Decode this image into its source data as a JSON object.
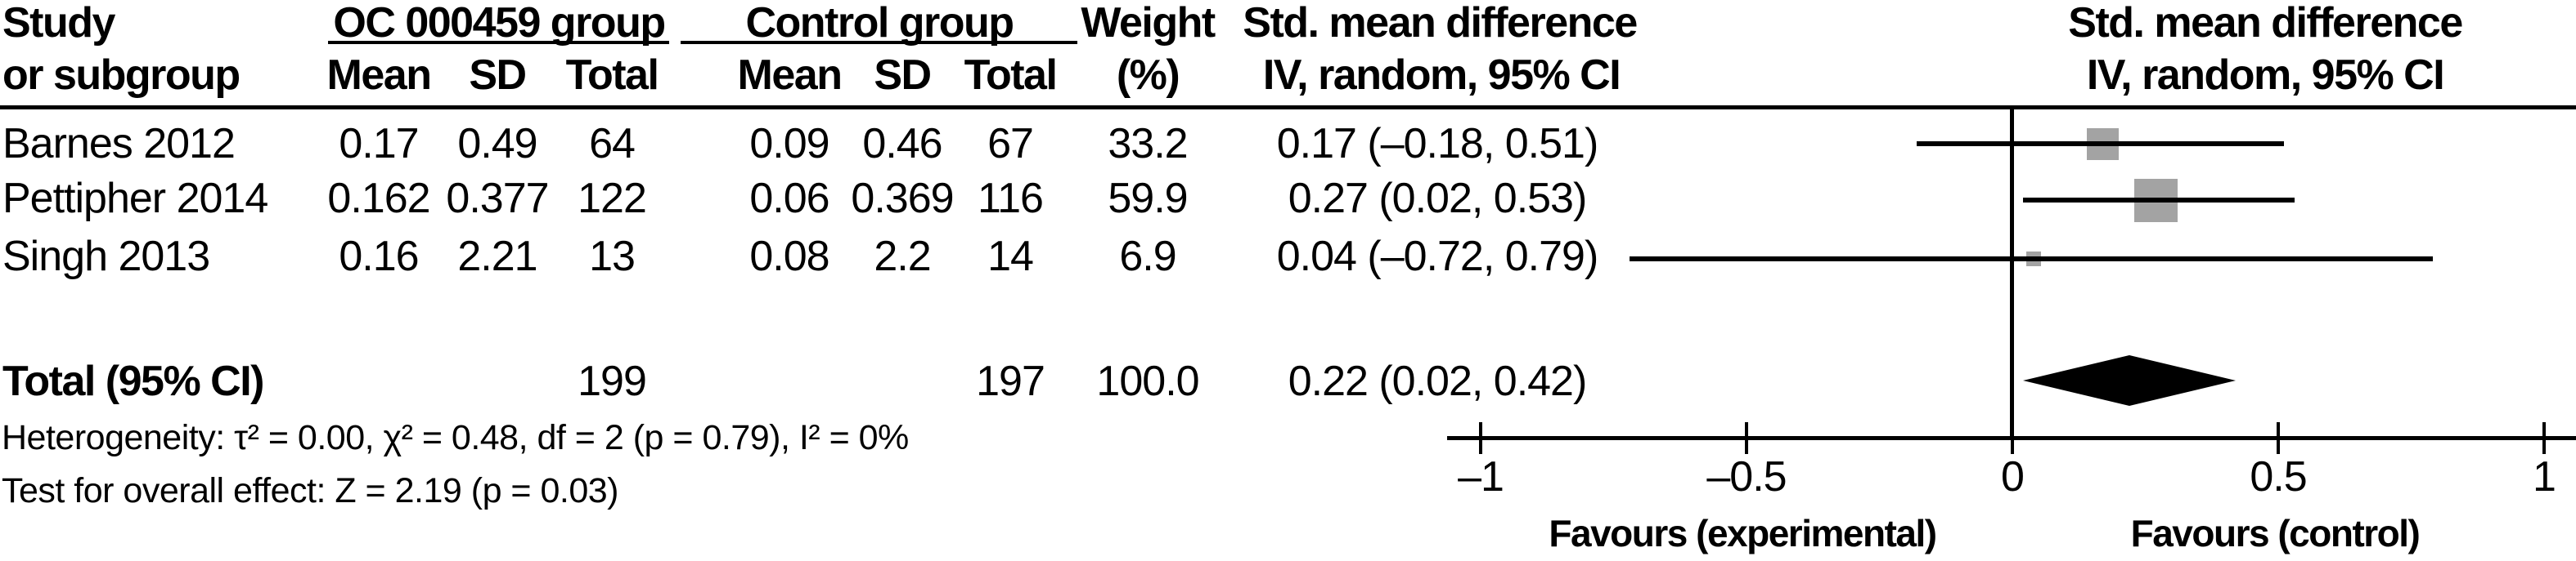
{
  "header": {
    "study_col": [
      "Study",
      "or subgroup"
    ],
    "group1": {
      "title": "OC 000459 group",
      "cols": [
        "Mean",
        "SD",
        "Total"
      ]
    },
    "group2": {
      "title": "Control group",
      "cols": [
        "Mean",
        "SD",
        "Total"
      ]
    },
    "weight_col": [
      "Weight",
      "(%)"
    ],
    "smd_col": [
      "Std. mean difference",
      "IV, random, 95% CI"
    ],
    "plot_col": [
      "Std. mean difference",
      "IV, random, 95% CI"
    ]
  },
  "rows": [
    {
      "study": "Barnes 2012",
      "mean1": "0.17",
      "sd1": "0.49",
      "total1": "64",
      "mean2": "0.09",
      "sd2": "0.46",
      "total2": "67",
      "weight": "33.2",
      "ci_text": "0.17 (–0.18, 0.51)"
    },
    {
      "study": "Pettipher 2014",
      "mean1": "0.162",
      "sd1": "0.377",
      "total1": "122",
      "mean2": "0.06",
      "sd2": "0.369",
      "total2": "116",
      "weight": "59.9",
      "ci_text": "0.27 (0.02, 0.53)"
    },
    {
      "study": "Singh 2013",
      "mean1": "0.16",
      "sd1": "2.21",
      "total1": "13",
      "mean2": "0.08",
      "sd2": "2.2",
      "total2": "14",
      "weight": "6.9",
      "ci_text": "0.04 (–0.72, 0.79)"
    }
  ],
  "total_row": {
    "label": "Total (95% CI)",
    "total1": "199",
    "total2": "197",
    "weight": "100.0",
    "ci_text": "0.22 (0.02, 0.42)"
  },
  "footnotes": {
    "heterogeneity": "Heterogeneity: τ² = 0.00, χ² = 0.48, df = 2 (p = 0.79), I² = 0%",
    "overall_effect": "Test for overall effect: Z = 2.19 (p = 0.03)"
  },
  "chart_data": {
    "type": "forest",
    "title": "Std. mean difference, IV, random, 95% CI",
    "x_axis": {
      "range": [
        -1,
        1
      ],
      "ticks": [
        -1,
        -0.5,
        0,
        0.5,
        1
      ],
      "tick_labels": [
        "–1",
        "–0.5",
        "0",
        "0.5",
        "1"
      ],
      "left_label": "Favours (experimental)",
      "right_label": "Favours (control)"
    },
    "studies": [
      {
        "name": "Barnes 2012",
        "smd": 0.17,
        "ci_low": -0.18,
        "ci_high": 0.51,
        "weight_pct": 33.2
      },
      {
        "name": "Pettipher 2014",
        "smd": 0.27,
        "ci_low": 0.02,
        "ci_high": 0.53,
        "weight_pct": 59.9
      },
      {
        "name": "Singh 2013",
        "smd": 0.04,
        "ci_low": -0.72,
        "ci_high": 0.79,
        "weight_pct": 6.9
      }
    ],
    "total": {
      "smd": 0.22,
      "ci_low": 0.02,
      "ci_high": 0.42,
      "n_experimental": 199,
      "n_control": 197,
      "weight_pct": 100.0
    },
    "marker_color": "#a3a3a3",
    "line_color": "#000000"
  }
}
